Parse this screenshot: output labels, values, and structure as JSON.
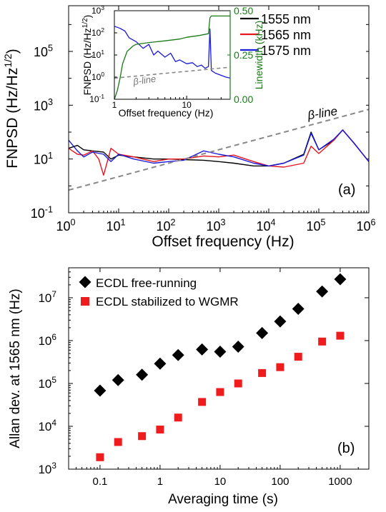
{
  "chart_data": [
    {
      "type": "line",
      "panel_label": "(a)",
      "xlabel": "Offset frequency (Hz)",
      "ylabel": "FNPSD (Hz/Hz",
      "ylabel_exp": "1/2",
      "ylabel_tail": ")",
      "xscale": "log",
      "yscale": "log",
      "xlim": [
        1,
        1000000
      ],
      "ylim": [
        0.1,
        5000000
      ],
      "x_ticks": [
        {
          "base": "10",
          "exp": "0"
        },
        {
          "base": "10",
          "exp": "1"
        },
        {
          "base": "10",
          "exp": "2"
        },
        {
          "base": "10",
          "exp": "3"
        },
        {
          "base": "10",
          "exp": "4"
        },
        {
          "base": "10",
          "exp": "5"
        },
        {
          "base": "10",
          "exp": "6"
        }
      ],
      "y_ticks": [
        {
          "base": "10",
          "exp": "-1"
        },
        {
          "base": "10",
          "exp": "1"
        },
        {
          "base": "10",
          "exp": "3"
        },
        {
          "base": "10",
          "exp": "5"
        }
      ],
      "legend_position": "top-right",
      "series": [
        {
          "name": "1555 nm",
          "color": "#000000",
          "x": [
            1,
            1.5,
            2,
            3,
            5,
            7,
            10,
            20,
            50,
            100,
            200,
            500,
            1000,
            2000,
            5000,
            10000,
            20000,
            50000,
            70000,
            100000,
            200000,
            300000,
            500000,
            1000000
          ],
          "y": [
            25,
            32,
            22,
            20,
            18,
            10,
            14,
            12,
            10,
            10,
            9.5,
            9,
            8,
            7,
            5.5,
            5.5,
            7,
            15,
            100,
            22,
            50,
            120,
            40,
            8
          ]
        },
        {
          "name": "1565 nm",
          "color": "#e8141e",
          "x": [
            1,
            1.5,
            2,
            3,
            4,
            5,
            7,
            10,
            20,
            50,
            100,
            200,
            500,
            1000,
            2000,
            5000,
            10000,
            20000,
            50000,
            70000,
            100000,
            200000,
            300000,
            500000,
            1000000
          ],
          "y": [
            25,
            15,
            14,
            20,
            10,
            2.5,
            25,
            15,
            12,
            8,
            10,
            10,
            13,
            12,
            14,
            8,
            5.5,
            5,
            7,
            30,
            16,
            50,
            120,
            40,
            8
          ]
        },
        {
          "name": "1575 nm",
          "color": "#1a1adc",
          "x": [
            1,
            1.5,
            2,
            3,
            5,
            7,
            10,
            20,
            50,
            100,
            200,
            500,
            1000,
            2000,
            5000,
            10000,
            20000,
            50000,
            70000,
            100000,
            200000,
            300000,
            500000,
            1000000
          ],
          "y": [
            50,
            20,
            12,
            18,
            15,
            8,
            15,
            10,
            7,
            8,
            9,
            20,
            15,
            12,
            7,
            5.5,
            7,
            14,
            90,
            22,
            55,
            120,
            40,
            8
          ]
        }
      ],
      "reference_line": {
        "name": "β-line",
        "x": [
          1,
          1000000
        ],
        "y": [
          0.7,
          700
        ]
      },
      "annotations": [
        "β-line"
      ],
      "inset": {
        "xlabel": "Offset frequency (Hz)",
        "ylabel": "FNPSD (Hz/Hz",
        "ylabel_exp": "1/2",
        "ylabel_tail": ")",
        "y2label": "Linewidth (kHz)",
        "xscale": "log",
        "yscale": "log",
        "xlim": [
          1,
          40
        ],
        "ylim": [
          0.1,
          1000
        ],
        "y2lim": [
          0,
          0.5
        ],
        "x_ticks": [
          {
            "value": 1,
            "label": "1"
          },
          {
            "value": 10,
            "label": "10"
          }
        ],
        "y_ticks": [
          {
            "base": "10",
            "exp": "-1"
          },
          {
            "base": "10",
            "exp": "0"
          },
          {
            "base": "10",
            "exp": "1"
          },
          {
            "base": "10",
            "exp": "2"
          },
          {
            "base": "10",
            "exp": "3"
          }
        ],
        "y2_ticks": [
          "0.00",
          "0.25",
          "0.50"
        ],
        "y2_color": "#1a7a1a",
        "series": [
          {
            "color": "#1a1adc",
            "axis": "left",
            "x": [
              1,
              1.2,
              1.4,
              1.6,
              2,
              2.5,
              3,
              3.5,
              4,
              5,
              6,
              7,
              8,
              10,
              12,
              14,
              16,
              18,
              20,
              21,
              22,
              25,
              30,
              35,
              40
            ],
            "y": [
              200,
              160,
              120,
              60,
              40,
              20,
              30,
              10,
              15,
              8,
              12,
              5,
              6,
              4,
              4.5,
              3,
              3.5,
              2.5,
              3,
              150,
              2,
              1.5,
              1.2,
              1.0,
              0.9
            ]
          },
          {
            "color": "#1a7a1a",
            "axis": "right",
            "x": [
              1,
              1.1,
              1.2,
              1.3,
              1.5,
              1.8,
              2,
              3,
              5,
              8,
              10,
              15,
              20,
              21,
              22,
              25,
              30,
              40
            ],
            "y": [
              0.0,
              0.05,
              0.12,
              0.2,
              0.27,
              0.3,
              0.31,
              0.32,
              0.33,
              0.34,
              0.35,
              0.36,
              0.37,
              0.46,
              0.47,
              0.47,
              0.47,
              0.47
            ]
          }
        ],
        "reference_line": {
          "name": "β-line",
          "x": [
            1,
            40
          ],
          "y": [
            0.9,
            2.8
          ]
        },
        "annotations": [
          "β-line"
        ]
      }
    },
    {
      "type": "scatter",
      "panel_label": "(b)",
      "xlabel": "Averaging time (s)",
      "ylabel": "Allan dev. at 1565 nm (Hz)",
      "xscale": "log",
      "yscale": "log",
      "xlim": [
        0.03,
        3000
      ],
      "ylim": [
        1000,
        50000000
      ],
      "x_ticks": [
        "0.1",
        "1",
        "10",
        "100",
        "1000"
      ],
      "y_ticks": [
        {
          "base": "10",
          "exp": "3"
        },
        {
          "base": "10",
          "exp": "4"
        },
        {
          "base": "10",
          "exp": "5"
        },
        {
          "base": "10",
          "exp": "6"
        },
        {
          "base": "10",
          "exp": "7"
        }
      ],
      "legend_position": "top-left",
      "series": [
        {
          "name": "ECDL free-running",
          "color": "#000000",
          "marker": "diamond",
          "x": [
            0.1,
            0.2,
            0.5,
            1,
            2,
            5,
            10,
            20,
            50,
            100,
            200,
            500,
            1000
          ],
          "y": [
            68000,
            120000,
            160000,
            290000,
            460000,
            620000,
            550000,
            720000,
            1500000,
            2800000,
            5500000,
            14000000,
            27000000
          ]
        },
        {
          "name": "ECDL stabilized to WGMR",
          "color": "#ee1c1c",
          "marker": "square",
          "x": [
            0.1,
            0.2,
            0.5,
            1,
            2,
            5,
            10,
            20,
            50,
            100,
            200,
            500,
            1000
          ],
          "y": [
            1900,
            4300,
            5900,
            8400,
            16000,
            37000,
            63000,
            100000,
            175000,
            240000,
            420000,
            950000,
            1300000
          ]
        }
      ]
    }
  ]
}
